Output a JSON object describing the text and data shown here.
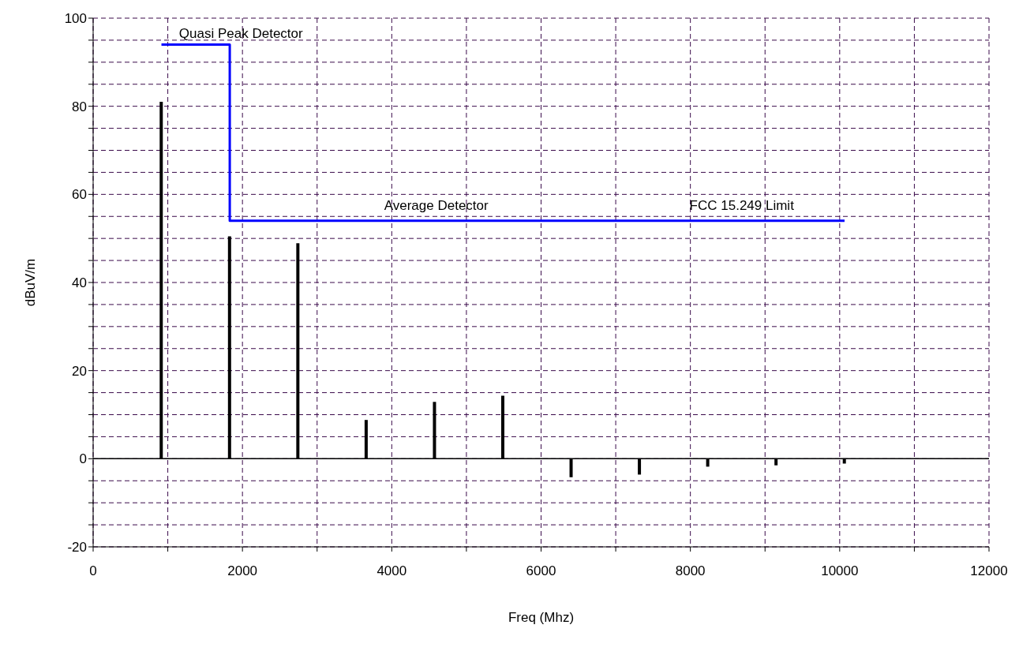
{
  "chart_data": {
    "type": "bar",
    "xlabel": "Freq (Mhz)",
    "ylabel": "dBuV/m",
    "x": [
      915,
      1830,
      2745,
      3660,
      4575,
      5490,
      6405,
      7320,
      8235,
      9150,
      10065
    ],
    "series": [
      {
        "color": "#000000",
        "values": [
          81,
          50.5,
          48.9,
          8.8,
          12.9,
          14.3,
          -4.2,
          -3.6,
          -1.8,
          -1.5,
          -1.1
        ]
      },
      {
        "type": "line",
        "color": "#0000ff",
        "x": [
          915,
          1830,
          1830,
          10065
        ],
        "values": [
          94,
          94,
          54,
          54
        ]
      }
    ],
    "xlim": [
      0,
      12000
    ],
    "xticks": [
      0,
      {
        "value": 1000,
        "label": null
      },
      2000,
      {
        "value": 3000,
        "label": null
      },
      4000,
      {
        "value": 5000,
        "label": null
      },
      6000,
      {
        "value": 7000,
        "label": null
      },
      8000,
      {
        "value": 9000,
        "label": null
      },
      10000,
      {
        "value": 11000,
        "label": null
      },
      12000
    ],
    "ylim": [
      -20,
      100
    ],
    "yticks": [
      -20,
      {
        "value": -15,
        "label": null
      },
      {
        "value": -10,
        "label": null
      },
      {
        "value": -5,
        "label": null
      },
      0,
      {
        "value": 5,
        "label": null
      },
      {
        "value": 10,
        "label": null
      },
      {
        "value": 15,
        "label": null
      },
      20,
      {
        "value": 25,
        "label": null
      },
      {
        "value": 30,
        "label": null
      },
      {
        "value": 35,
        "label": null
      },
      40,
      {
        "value": 45,
        "label": null
      },
      {
        "value": 50,
        "label": null
      },
      {
        "value": 55,
        "label": null
      },
      60,
      {
        "value": 65,
        "label": null
      },
      {
        "value": 70,
        "label": null
      },
      {
        "value": 75,
        "label": null
      },
      80,
      {
        "value": 85,
        "label": null
      },
      {
        "value": 90,
        "label": null
      },
      {
        "value": 95,
        "label": null
      },
      100
    ],
    "grid": true,
    "line_style": "solid",
    "marker": "none",
    "annotations": [
      "Quasi Peak Detector",
      "Average Detector",
      "FCC 15.249 Limit"
    ]
  }
}
